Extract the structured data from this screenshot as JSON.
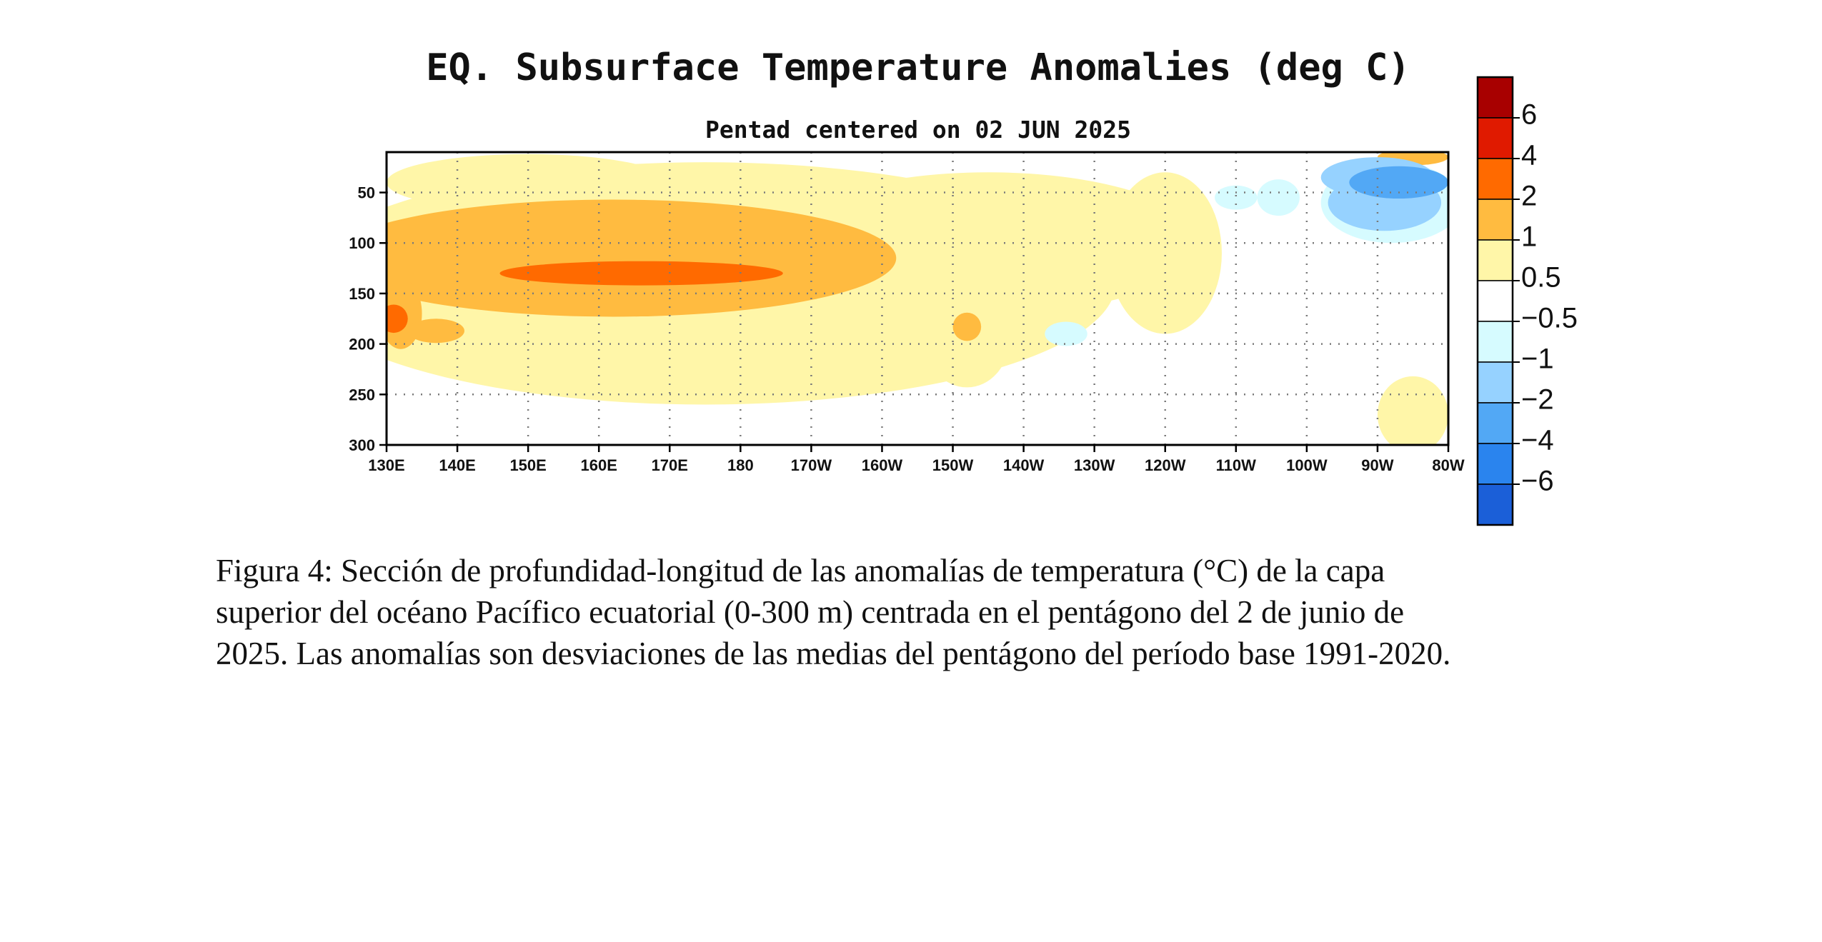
{
  "chart_data": {
    "type": "heatmap",
    "title": "EQ. Subsurface Temperature Anomalies (deg C)",
    "subtitle": "Pentad centered on 02 JUN 2025",
    "x_tick_labels": [
      "130E",
      "140E",
      "150E",
      "160E",
      "170E",
      "180",
      "170W",
      "160W",
      "150W",
      "140W",
      "130W",
      "120W",
      "110W",
      "100W",
      "90W",
      "80W"
    ],
    "x_tick_values": [
      130,
      140,
      150,
      160,
      170,
      180,
      190,
      200,
      210,
      220,
      230,
      240,
      250,
      260,
      270,
      280
    ],
    "xlim": [
      130,
      280
    ],
    "y_tick_labels": [
      "50",
      "100",
      "150",
      "200",
      "250",
      "300"
    ],
    "y_tick_values": [
      50,
      100,
      150,
      200,
      250,
      300
    ],
    "ylim": [
      10,
      300
    ],
    "grid": true,
    "colorbar": {
      "labels": [
        "6",
        "4",
        "2",
        "1",
        "0.5",
        "−0.5",
        "−1",
        "−2",
        "−4",
        "−6"
      ],
      "levels": [
        6,
        4,
        2,
        1,
        0.5,
        -0.5,
        -1,
        -2,
        -4,
        -6
      ],
      "colors": [
        "#a80000",
        "#e01a00",
        "#ff6a00",
        "#ffbb40",
        "#fff6a8",
        "#ffffff",
        "#d6fbff",
        "#96d2ff",
        "#52a8f5",
        "#2a84ee",
        "#1b5fd8"
      ],
      "placement": "right"
    },
    "features": [
      {
        "level": 0.5,
        "lon": 175,
        "depth": 140,
        "lon_half": 58,
        "depth_half": 120
      },
      {
        "level": 0.5,
        "lon": 215,
        "depth": 100,
        "lon_half": 30,
        "depth_half": 70
      },
      {
        "level": 0.5,
        "lon": 150,
        "depth": 40,
        "lon_half": 20,
        "depth_half": 28
      },
      {
        "level": 0.5,
        "lon": 212,
        "depth": 195,
        "lon_half": 6,
        "depth_half": 48
      },
      {
        "level": 0.5,
        "lon": 240,
        "depth": 110,
        "lon_half": 8,
        "depth_half": 80
      },
      {
        "level": 0.5,
        "lon": 275,
        "depth": 270,
        "lon_half": 5,
        "depth_half": 38
      },
      {
        "level": 0.5,
        "lon": 140,
        "depth": 160,
        "lon_half": 10,
        "depth_half": 60
      },
      {
        "level": 1,
        "lon": 162,
        "depth": 115,
        "lon_half": 40,
        "depth_half": 58
      },
      {
        "level": 1,
        "lon": 132,
        "depth": 170,
        "lon_half": 3,
        "depth_half": 35
      },
      {
        "level": 1,
        "lon": 137,
        "depth": 187,
        "lon_half": 4,
        "depth_half": 12
      },
      {
        "level": 1,
        "lon": 212,
        "depth": 183,
        "lon_half": 2,
        "depth_half": 14
      },
      {
        "level": 1,
        "lon": 275,
        "depth": 15,
        "lon_half": 5,
        "depth_half": 8
      },
      {
        "level": 2,
        "lon": 166,
        "depth": 130,
        "lon_half": 20,
        "depth_half": 12
      },
      {
        "level": 2,
        "lon": 131,
        "depth": 175,
        "lon_half": 2,
        "depth_half": 14
      },
      {
        "level": -0.5,
        "lon": 250,
        "depth": 55,
        "lon_half": 3,
        "depth_half": 12
      },
      {
        "level": -0.5,
        "lon": 256,
        "depth": 55,
        "lon_half": 3,
        "depth_half": 18
      },
      {
        "level": -0.5,
        "lon": 226,
        "depth": 190,
        "lon_half": 3,
        "depth_half": 12
      },
      {
        "level": -0.5,
        "lon": 272,
        "depth": 60,
        "lon_half": 10,
        "depth_half": 40
      },
      {
        "level": -1,
        "lon": 270,
        "depth": 35,
        "lon_half": 8,
        "depth_half": 20
      },
      {
        "level": -1,
        "lon": 271,
        "depth": 60,
        "lon_half": 8,
        "depth_half": 28
      },
      {
        "level": -2,
        "lon": 273,
        "depth": 40,
        "lon_half": 7,
        "depth_half": 16
      }
    ]
  },
  "caption_lines": [
    "Figura 4: Sección de profundidad-longitud de las anomalías de temperatura (°C) de la capa",
    "superior del océano Pacífico ecuatorial (0-300 m) centrada en el pentágono del 2 de junio de",
    "2025. Las anomalías son desviaciones de las medias del pentágono del período base 1991-2020."
  ]
}
